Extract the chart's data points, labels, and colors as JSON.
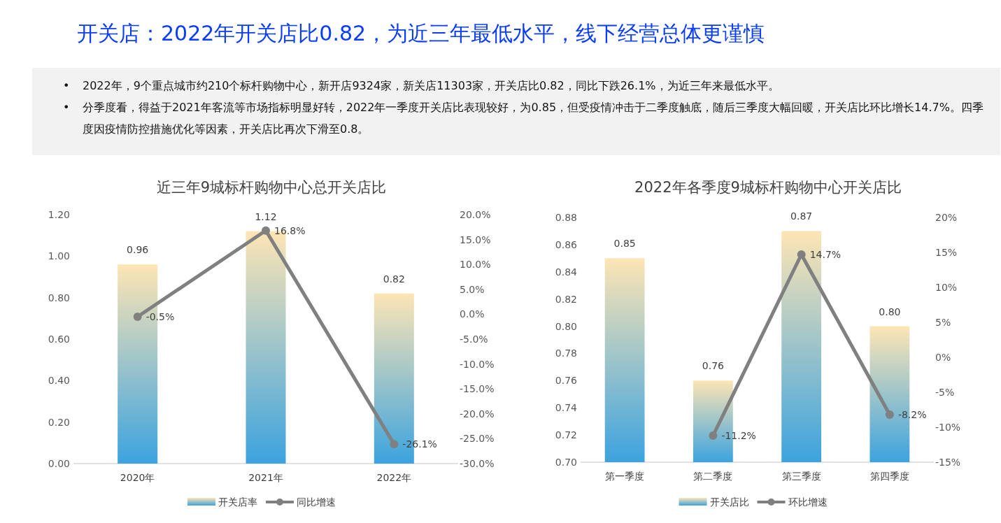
{
  "chart_data": [
    {
      "type": "other",
      "title": "开关店：2022年开关店比0.82，为近三年最低水平，线下经营总体更谨慎",
      "annotations": [
        "• 2022年，9个重点城市约210个标杆购物中心，新开店9324家，新关店11303家，开关店比0.82，同比下跌26.1%，为近三年来最低水平。",
        "• 分季度看，得益于2021年客流等市场指标明显好转，2022年一季度开关店比表现较好，为0.85，但受疫情冲击于二季度触底，随后三季度大幅回暖，开关店比环比增长14.7%。四季度因疫情防控措施优化等因素，开关店比再次下滑至0.8。"
      ]
    },
    {
      "type": "bar",
      "title": "近三年9城标杆购物中心总开关店比",
      "categories": [
        "2020年",
        "2021年",
        "2022年"
      ],
      "series": [
        {
          "name": "开关店率",
          "type": "bar",
          "color": "#3ca3df",
          "values": [
            0.96,
            1.12,
            0.82
          ],
          "value_labels": [
            "0.96",
            "1.12",
            "0.82"
          ]
        },
        {
          "name": "同比增速",
          "type": "line",
          "axis": "y2",
          "color": "#808080",
          "values": [
            -0.5,
            16.8,
            -26.1
          ],
          "value_labels": [
            "-0.5%",
            "16.8%",
            "-26.1%"
          ]
        }
      ],
      "ylim": [
        0,
        1.2
      ],
      "yticks": [
        {
          "value": 0,
          "label": "0.00"
        },
        {
          "value": 0.2,
          "label": "0.20"
        },
        {
          "value": 0.4,
          "label": "0.40"
        },
        {
          "value": 0.6,
          "label": "0.60"
        },
        {
          "value": 0.8,
          "label": "0.80"
        },
        {
          "value": 1.0,
          "label": "1.00"
        },
        {
          "value": 1.2,
          "label": "1.20"
        }
      ],
      "y2lim": [
        -30,
        20
      ],
      "y2ticks": [
        {
          "value": -30,
          "label": "-30.0%"
        },
        {
          "value": -25,
          "label": "-25.0%"
        },
        {
          "value": -20,
          "label": "-20.0%"
        },
        {
          "value": -15,
          "label": "-15.0%"
        },
        {
          "value": -10,
          "label": "-10.0%"
        },
        {
          "value": -5,
          "label": "-5.0%"
        },
        {
          "value": 0,
          "label": "0.0%"
        },
        {
          "value": 5,
          "label": "5.0%"
        },
        {
          "value": 10,
          "label": "10.0%"
        },
        {
          "value": 15,
          "label": "15.0%"
        },
        {
          "value": 20,
          "label": "20.0%"
        }
      ],
      "marker": "circle",
      "legend": "bottom",
      "grid": false
    },
    {
      "type": "bar",
      "title": "2022年各季度9城标杆购物中心开关店比",
      "categories": [
        "第一季度",
        "第二季度",
        "第三季度",
        "第四季度"
      ],
      "series": [
        {
          "name": "开关店比",
          "type": "bar",
          "color": "#3ca3df",
          "values": [
            0.85,
            0.76,
            0.87,
            0.8
          ],
          "value_labels": [
            "0.85",
            "0.76",
            "0.87",
            "0.80"
          ]
        },
        {
          "name": "环比增速",
          "type": "line",
          "axis": "y2",
          "color": "#808080",
          "values": [
            null,
            -11.2,
            14.7,
            -8.2
          ],
          "value_labels": [
            null,
            "-11.2%",
            "14.7%",
            "-8.2%"
          ]
        }
      ],
      "ylim": [
        0.7,
        0.88
      ],
      "yticks": [
        {
          "value": 0.7,
          "label": "0.70"
        },
        {
          "value": 0.72,
          "label": "0.72"
        },
        {
          "value": 0.74,
          "label": "0.74"
        },
        {
          "value": 0.76,
          "label": "0.76"
        },
        {
          "value": 0.78,
          "label": "0.78"
        },
        {
          "value": 0.8,
          "label": "0.80"
        },
        {
          "value": 0.82,
          "label": "0.82"
        },
        {
          "value": 0.84,
          "label": "0.84"
        },
        {
          "value": 0.86,
          "label": "0.86"
        },
        {
          "value": 0.88,
          "label": "0.88"
        }
      ],
      "y2lim": [
        -15,
        20
      ],
      "y2ticks": [
        {
          "value": -15,
          "label": "-15%"
        },
        {
          "value": -10,
          "label": "-10%"
        },
        {
          "value": -5,
          "label": "-5%"
        },
        {
          "value": 0,
          "label": "0%"
        },
        {
          "value": 5,
          "label": "5%"
        },
        {
          "value": 10,
          "label": "10%"
        },
        {
          "value": 15,
          "label": "15%"
        },
        {
          "value": 20,
          "label": "20%"
        }
      ],
      "marker": "circle",
      "legend": "bottom",
      "grid": false
    }
  ]
}
